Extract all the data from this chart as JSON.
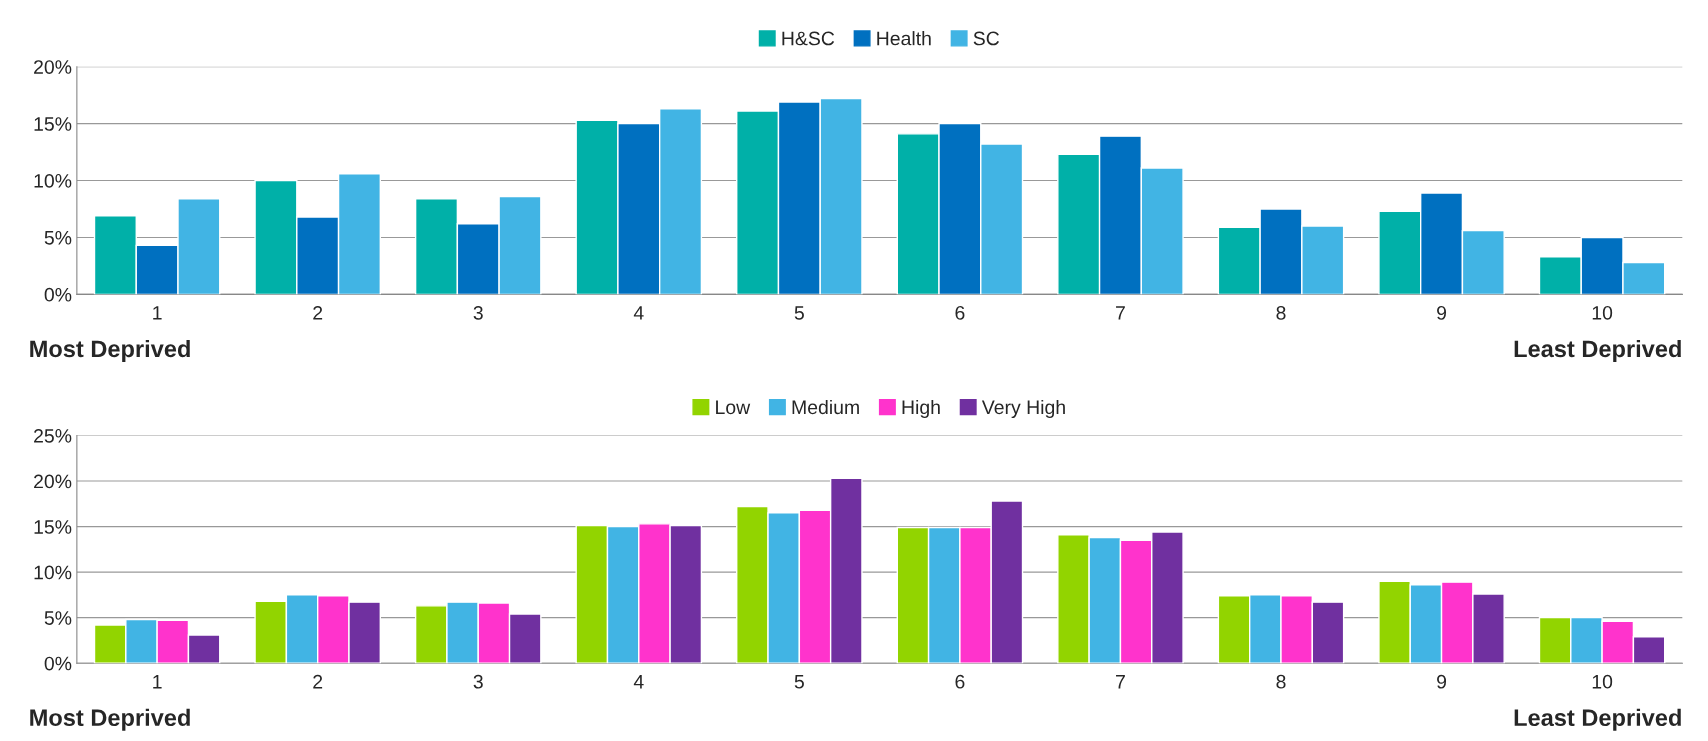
{
  "chart_data": [
    {
      "type": "bar",
      "categories": [
        "1",
        "2",
        "3",
        "4",
        "5",
        "6",
        "7",
        "8",
        "9",
        "10"
      ],
      "series": [
        {
          "name": "H&SC",
          "color": "#00b0a8",
          "values": [
            6.9,
            10.0,
            8.4,
            15.3,
            16.1,
            14.1,
            12.3,
            5.9,
            7.3,
            3.3
          ]
        },
        {
          "name": "Health",
          "color": "#0070c0",
          "values": [
            4.3,
            6.8,
            6.2,
            15.0,
            16.9,
            15.0,
            13.9,
            7.5,
            8.9,
            5.0
          ]
        },
        {
          "name": "SC",
          "color": "#41b4e4",
          "values": [
            8.4,
            10.6,
            8.6,
            16.3,
            17.2,
            13.2,
            11.1,
            6.0,
            5.6,
            2.8
          ]
        }
      ],
      "ylim": [
        0,
        20
      ],
      "yticks": [
        {
          "value": 0,
          "label": "0%"
        },
        {
          "value": 5,
          "label": "5%"
        },
        {
          "value": 10,
          "label": "10%"
        },
        {
          "value": 15,
          "label": "15%"
        },
        {
          "value": 20,
          "label": "20%"
        }
      ],
      "grid": "y",
      "legend": "top",
      "annotations": [
        "Most Deprived",
        "Least Deprived"
      ]
    },
    {
      "type": "bar",
      "categories": [
        "1",
        "2",
        "3",
        "4",
        "5",
        "6",
        "7",
        "8",
        "9",
        "10"
      ],
      "series": [
        {
          "name": "Low",
          "color": "#92d400",
          "values": [
            4.2,
            6.8,
            6.3,
            15.1,
            17.2,
            14.9,
            14.1,
            7.4,
            9.0,
            5.0
          ]
        },
        {
          "name": "Medium",
          "color": "#41b4e4",
          "values": [
            4.8,
            7.5,
            6.7,
            15.0,
            16.5,
            14.9,
            13.8,
            7.5,
            8.6,
            5.0
          ]
        },
        {
          "name": "High",
          "color": "#ff33cc",
          "values": [
            4.7,
            7.4,
            6.6,
            15.3,
            16.8,
            14.9,
            13.5,
            7.4,
            8.9,
            4.6
          ]
        },
        {
          "name": "Very High",
          "color": "#7030a0",
          "values": [
            3.1,
            6.7,
            5.4,
            15.1,
            20.3,
            17.8,
            14.4,
            6.7,
            7.6,
            2.9
          ]
        }
      ],
      "ylim": [
        0,
        25
      ],
      "yticks": [
        {
          "value": 0,
          "label": "0%"
        },
        {
          "value": 5,
          "label": "5%"
        },
        {
          "value": 10,
          "label": "10%"
        },
        {
          "value": 15,
          "label": "15%"
        },
        {
          "value": 20,
          "label": "20%"
        },
        {
          "value": 25,
          "label": "25%"
        }
      ],
      "grid": "y",
      "legend": "top",
      "annotations": [
        "Most Deprived",
        "Least Deprived"
      ]
    }
  ]
}
